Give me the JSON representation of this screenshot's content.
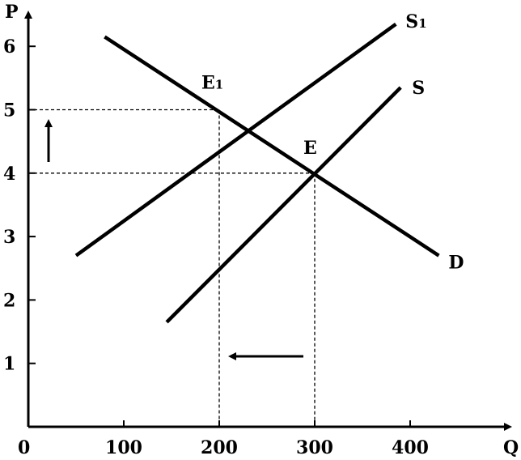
{
  "chart_data": {
    "type": "line",
    "title": "",
    "xlabel": "Q",
    "ylabel": "P",
    "xlim": [
      0,
      460
    ],
    "ylim": [
      0,
      6.5
    ],
    "x_ticks": [
      100,
      200,
      300,
      400
    ],
    "y_ticks": [
      1,
      2,
      3,
      4,
      5,
      6
    ],
    "origin_label": "0",
    "grid": false,
    "legend": "none",
    "series": [
      {
        "name": "S1",
        "label": "S",
        "label_sub": "1",
        "points": [
          [
            50,
            2.7
          ],
          [
            385,
            6.35
          ]
        ]
      },
      {
        "name": "S",
        "label": "S",
        "label_sub": "",
        "points": [
          [
            145,
            1.65
          ],
          [
            390,
            5.35
          ]
        ]
      },
      {
        "name": "D",
        "label": "D",
        "label_sub": "",
        "points": [
          [
            80,
            6.15
          ],
          [
            430,
            2.7
          ]
        ]
      }
    ],
    "points": [
      {
        "name": "E1",
        "label": "E",
        "label_sub": "1",
        "x": 200,
        "y": 5
      },
      {
        "name": "E",
        "label": "E",
        "label_sub": "",
        "x": 300,
        "y": 4
      }
    ],
    "annotations": [
      {
        "type": "arrow",
        "direction": "up",
        "meaning": "price rises"
      },
      {
        "type": "arrow",
        "direction": "left",
        "meaning": "quantity falls"
      }
    ]
  }
}
